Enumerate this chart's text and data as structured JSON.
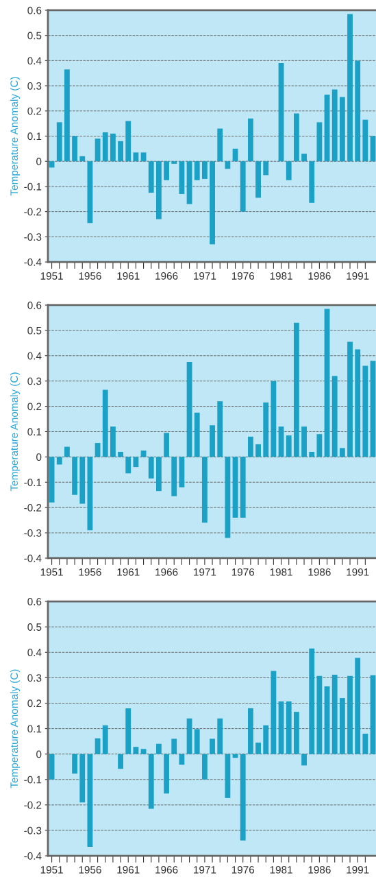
{
  "chart_data": [
    {
      "type": "bar",
      "ylabel": "Temperature Anomaly (C)",
      "color": "#1ba0c6",
      "grid": "y",
      "ylim": [
        -0.4,
        0.6
      ],
      "yticks": [
        -0.4,
        -0.3,
        -0.2,
        -0.1,
        0,
        0.1,
        0.2,
        0.3,
        0.4,
        0.5,
        0.6
      ],
      "xlim": [
        1950.5,
        1993.4
      ],
      "xticks": [
        1951,
        {
          "value": 1952,
          "label": null
        },
        {
          "value": 1953,
          "label": null
        },
        {
          "value": 1954,
          "label": null
        },
        {
          "value": 1955,
          "label": null
        },
        1956,
        {
          "value": 1957,
          "label": null
        },
        {
          "value": 1958,
          "label": null
        },
        {
          "value": 1959,
          "label": null
        },
        {
          "value": 1960,
          "label": null
        },
        1961,
        {
          "value": 1962,
          "label": null
        },
        {
          "value": 1963,
          "label": null
        },
        {
          "value": 1964,
          "label": null
        },
        {
          "value": 1965,
          "label": null
        },
        1966,
        {
          "value": 1967,
          "label": null
        },
        {
          "value": 1968,
          "label": null
        },
        {
          "value": 1969,
          "label": null
        },
        {
          "value": 1970,
          "label": null
        },
        1971,
        {
          "value": 1972,
          "label": null
        },
        {
          "value": 1973,
          "label": null
        },
        {
          "value": 1974,
          "label": null
        },
        {
          "value": 1975,
          "label": null
        },
        1976,
        {
          "value": 1977,
          "label": null
        },
        {
          "value": 1978,
          "label": null
        },
        {
          "value": 1979,
          "label": null
        },
        {
          "value": 1980,
          "label": null
        },
        1981,
        {
          "value": 1982,
          "label": null
        },
        {
          "value": 1983,
          "label": null
        },
        {
          "value": 1984,
          "label": null
        },
        {
          "value": 1985,
          "label": null
        },
        1986,
        {
          "value": 1987,
          "label": null
        },
        {
          "value": 1988,
          "label": null
        },
        {
          "value": 1989,
          "label": null
        },
        {
          "value": 1990,
          "label": null
        },
        1991,
        {
          "value": 1992,
          "label": null
        }
      ],
      "x": [
        1951,
        1952,
        1953,
        1954,
        1955,
        1956,
        1957,
        1958,
        1959,
        1960,
        1961,
        1962,
        1963,
        1964,
        1965,
        1966,
        1967,
        1968,
        1969,
        1970,
        1971,
        1972,
        1973,
        1974,
        1975,
        1976,
        1977,
        1978,
        1979,
        1980,
        1981,
        1982,
        1983,
        1984,
        1985,
        1986,
        1987,
        1988,
        1989,
        1990,
        1991,
        1992,
        1993
      ],
      "values": [
        -0.025,
        0.155,
        0.365,
        0.1,
        0.02,
        -0.245,
        0.09,
        0.115,
        0.11,
        0.08,
        0.16,
        0.035,
        0.035,
        -0.125,
        -0.23,
        -0.075,
        -0.01,
        -0.13,
        -0.17,
        -0.075,
        -0.07,
        -0.33,
        0.13,
        -0.03,
        0.05,
        -0.2,
        0.17,
        -0.145,
        -0.055,
        0,
        0.39,
        -0.075,
        0.19,
        0.03,
        -0.165,
        0.155,
        0.265,
        0.285,
        0.255,
        0.585,
        0.4,
        0.165,
        0.1
      ]
    },
    {
      "type": "bar",
      "ylabel": "Temperature Anomaly (C)",
      "color": "#1ba0c6",
      "grid": "y",
      "ylim": [
        -0.4,
        0.6
      ],
      "yticks": [
        -0.4,
        -0.3,
        -0.2,
        -0.1,
        0,
        0.1,
        0.2,
        0.3,
        0.4,
        0.5,
        0.6
      ],
      "xlim": [
        1950.5,
        1993.4
      ],
      "xticks": [
        1951,
        {
          "value": 1952,
          "label": null
        },
        {
          "value": 1953,
          "label": null
        },
        {
          "value": 1954,
          "label": null
        },
        {
          "value": 1955,
          "label": null
        },
        1956,
        {
          "value": 1957,
          "label": null
        },
        {
          "value": 1958,
          "label": null
        },
        {
          "value": 1959,
          "label": null
        },
        {
          "value": 1960,
          "label": null
        },
        1961,
        {
          "value": 1962,
          "label": null
        },
        {
          "value": 1963,
          "label": null
        },
        {
          "value": 1964,
          "label": null
        },
        {
          "value": 1965,
          "label": null
        },
        1966,
        {
          "value": 1967,
          "label": null
        },
        {
          "value": 1968,
          "label": null
        },
        {
          "value": 1969,
          "label": null
        },
        {
          "value": 1970,
          "label": null
        },
        1971,
        {
          "value": 1972,
          "label": null
        },
        {
          "value": 1973,
          "label": null
        },
        {
          "value": 1974,
          "label": null
        },
        {
          "value": 1975,
          "label": null
        },
        1976,
        {
          "value": 1977,
          "label": null
        },
        {
          "value": 1978,
          "label": null
        },
        {
          "value": 1979,
          "label": null
        },
        {
          "value": 1980,
          "label": null
        },
        1981,
        {
          "value": 1982,
          "label": null
        },
        {
          "value": 1983,
          "label": null
        },
        {
          "value": 1984,
          "label": null
        },
        {
          "value": 1985,
          "label": null
        },
        1986,
        {
          "value": 1987,
          "label": null
        },
        {
          "value": 1988,
          "label": null
        },
        {
          "value": 1989,
          "label": null
        },
        {
          "value": 1990,
          "label": null
        },
        1991,
        {
          "value": 1992,
          "label": null
        }
      ],
      "x": [
        1951,
        1952,
        1953,
        1954,
        1955,
        1956,
        1957,
        1958,
        1959,
        1960,
        1961,
        1962,
        1963,
        1964,
        1965,
        1966,
        1967,
        1968,
        1969,
        1970,
        1971,
        1972,
        1973,
        1974,
        1975,
        1976,
        1977,
        1978,
        1979,
        1980,
        1981,
        1982,
        1983,
        1984,
        1985,
        1986,
        1987,
        1988,
        1989,
        1990,
        1991,
        1992,
        1993
      ],
      "values": [
        -0.18,
        -0.03,
        0.04,
        -0.15,
        -0.185,
        -0.29,
        0.055,
        0.265,
        0.12,
        0.02,
        -0.065,
        -0.04,
        0.025,
        -0.085,
        -0.135,
        0.095,
        -0.155,
        -0.12,
        0.375,
        0.175,
        -0.26,
        0.125,
        0.22,
        -0.32,
        -0.24,
        -0.24,
        0.08,
        0.05,
        0.215,
        0.3,
        0.12,
        0.085,
        0.53,
        0.12,
        0.02,
        0.09,
        0.585,
        0.32,
        0.035,
        0.455,
        0.425,
        0.36,
        0.38
      ]
    },
    {
      "type": "bar",
      "ylabel": "Temperature Anomaly (C)",
      "color": "#1ba0c6",
      "grid": "y",
      "ylim": [
        -0.4,
        0.6
      ],
      "yticks": [
        -0.4,
        -0.3,
        -0.2,
        -0.1,
        0,
        0.1,
        0.2,
        0.3,
        0.4,
        0.5,
        0.6
      ],
      "xlim": [
        1950.5,
        1993.4
      ],
      "xticks": [
        1951,
        {
          "value": 1952,
          "label": null
        },
        {
          "value": 1953,
          "label": null
        },
        {
          "value": 1954,
          "label": null
        },
        {
          "value": 1955,
          "label": null
        },
        1956,
        {
          "value": 1957,
          "label": null
        },
        {
          "value": 1958,
          "label": null
        },
        {
          "value": 1959,
          "label": null
        },
        {
          "value": 1960,
          "label": null
        },
        1961,
        {
          "value": 1962,
          "label": null
        },
        {
          "value": 1963,
          "label": null
        },
        {
          "value": 1964,
          "label": null
        },
        {
          "value": 1965,
          "label": null
        },
        1966,
        {
          "value": 1967,
          "label": null
        },
        {
          "value": 1968,
          "label": null
        },
        {
          "value": 1969,
          "label": null
        },
        {
          "value": 1970,
          "label": null
        },
        1971,
        {
          "value": 1972,
          "label": null
        },
        {
          "value": 1973,
          "label": null
        },
        {
          "value": 1974,
          "label": null
        },
        {
          "value": 1975,
          "label": null
        },
        1976,
        {
          "value": 1977,
          "label": null
        },
        {
          "value": 1978,
          "label": null
        },
        {
          "value": 1979,
          "label": null
        },
        {
          "value": 1980,
          "label": null
        },
        1981,
        {
          "value": 1982,
          "label": null
        },
        {
          "value": 1983,
          "label": null
        },
        {
          "value": 1984,
          "label": null
        },
        {
          "value": 1985,
          "label": null
        },
        1986,
        {
          "value": 1987,
          "label": null
        },
        {
          "value": 1988,
          "label": null
        },
        {
          "value": 1989,
          "label": null
        },
        {
          "value": 1990,
          "label": null
        },
        1991,
        {
          "value": 1992,
          "label": null
        }
      ],
      "x": [
        1951,
        1952,
        1953,
        1954,
        1955,
        1956,
        1957,
        1958,
        1959,
        1960,
        1961,
        1962,
        1963,
        1964,
        1965,
        1966,
        1967,
        1968,
        1969,
        1970,
        1971,
        1972,
        1973,
        1974,
        1975,
        1976,
        1977,
        1978,
        1979,
        1980,
        1981,
        1982,
        1983,
        1984,
        1985,
        1986,
        1987,
        1988,
        1989,
        1990,
        1991,
        1992,
        1993
      ],
      "values": [
        -0.1,
        0,
        0,
        -0.077,
        -0.19,
        -0.365,
        0.062,
        0.113,
        0,
        -0.058,
        0.18,
        0.028,
        0.02,
        -0.215,
        0.04,
        -0.155,
        0.06,
        -0.042,
        0.14,
        0.098,
        -0.1,
        0.06,
        0.14,
        -0.173,
        -0.015,
        -0.34,
        0.18,
        0.045,
        0.113,
        0.327,
        0.207,
        0.207,
        0.166,
        -0.045,
        0.415,
        0.307,
        0.266,
        0.312,
        0.22,
        0.307,
        0.378,
        0.08,
        0.31
      ]
    }
  ]
}
